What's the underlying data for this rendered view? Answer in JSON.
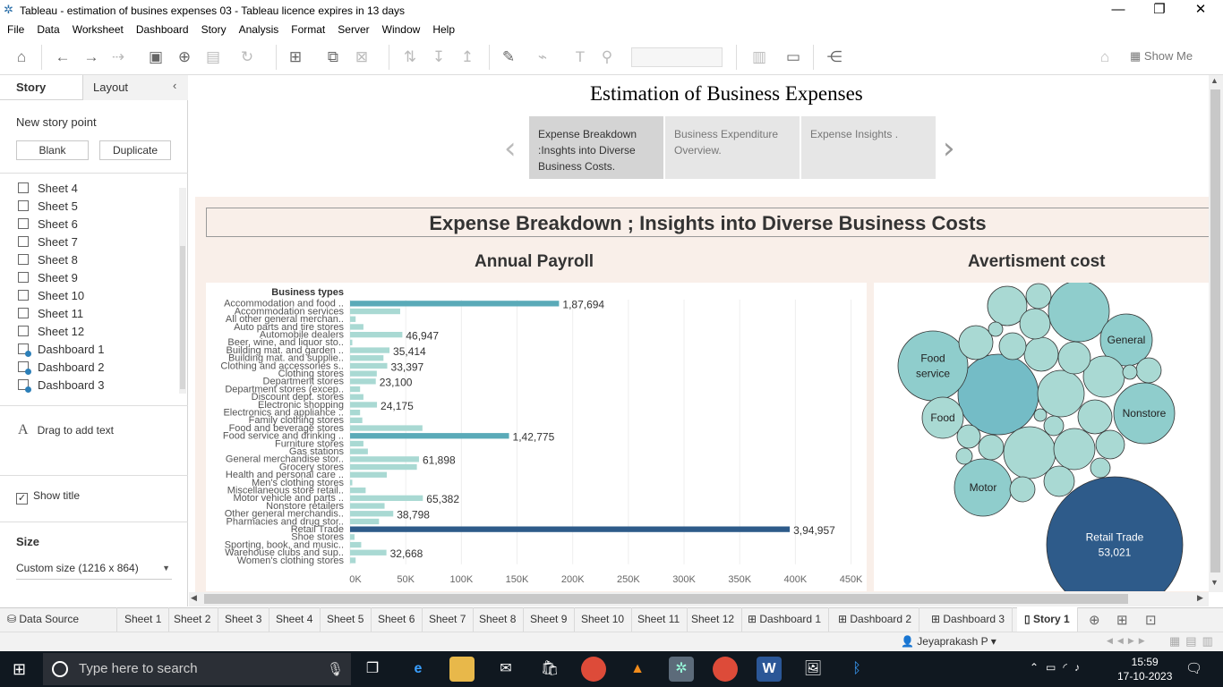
{
  "window": {
    "title": "Tableau - estimation of busines expenses 03 - Tableau licence expires in 13 days",
    "minimize": "—",
    "maximize": "❐",
    "close": "✕"
  },
  "menu": [
    "File",
    "Data",
    "Worksheet",
    "Dashboard",
    "Story",
    "Analysis",
    "Format",
    "Server",
    "Window",
    "Help"
  ],
  "toolbar": {
    "show_me": "Show Me"
  },
  "left_panel": {
    "tab_story": "Story",
    "tab_layout": "Layout",
    "new_story_point": "New story point",
    "blank_button": "Blank",
    "duplicate_button": "Duplicate",
    "items": [
      {
        "label": "Sheet 4",
        "type": "sheet"
      },
      {
        "label": "Sheet 5",
        "type": "sheet"
      },
      {
        "label": "Sheet 6",
        "type": "sheet"
      },
      {
        "label": "Sheet 7",
        "type": "sheet"
      },
      {
        "label": "Sheet 8",
        "type": "sheet"
      },
      {
        "label": "Sheet 9",
        "type": "sheet"
      },
      {
        "label": "Sheet 10",
        "type": "sheet"
      },
      {
        "label": "Sheet 11",
        "type": "sheet"
      },
      {
        "label": "Sheet 12",
        "type": "sheet"
      },
      {
        "label": "Dashboard 1",
        "type": "dashboard"
      },
      {
        "label": "Dashboard 2",
        "type": "dashboard"
      },
      {
        "label": "Dashboard 3",
        "type": "dashboard"
      }
    ],
    "drag_text": "Drag to add text",
    "show_title": "Show title",
    "size_label": "Size",
    "size_value": "Custom size (1216 x 864)"
  },
  "story": {
    "title": "Estimation of Business Expenses",
    "points": [
      "Expense Breakdown :Insghts into Diverse Business Costs.",
      "Business Expenditure Overview.",
      "Expense Insights ."
    ],
    "active_point": 0
  },
  "dashboard": {
    "title": "Expense Breakdown ; Insights into Diverse Business Costs",
    "payroll_title": "Annual Payroll",
    "advert_title": "Avertisment cost"
  },
  "chart_data": [
    {
      "type": "bar",
      "orientation": "horizontal",
      "title": "Annual Payroll",
      "ylabel": "Business types",
      "categories": [
        "Accommodation and food ..",
        "Accommodation services",
        "All other general merchan..",
        "Auto parts and tire stores",
        "Automobile dealers",
        "Beer, wine, and liquor sto..",
        "Building mat. and garden ..",
        "Building mat. and supplie..",
        "Clothing and accessories s..",
        "Clothing stores",
        "Department stores",
        "Department stores (excep..",
        "Discount dept. stores",
        "Electronic shopping",
        "Electronics and appliance ..",
        "Family clothing stores",
        "Food and beverage stores",
        "Food service and drinking ..",
        "Furniture stores",
        "Gas stations",
        "General merchandise stor..",
        "Grocery stores",
        "Health and personal care ..",
        "Men's clothing stores",
        "Miscellaneous store retail..",
        "Motor vehicle and parts ..",
        "Nonstore retailers",
        "Other general merchandis..",
        "Pharmacies and drug stor..",
        "Retail Trade",
        "Shoe stores",
        "Sporting, book, and music..",
        "Warehouse clubs and sup..",
        "Women's clothing stores"
      ],
      "values": [
        187694,
        45000,
        5000,
        12000,
        46947,
        2000,
        35414,
        30000,
        33397,
        24000,
        23100,
        9000,
        12000,
        24175,
        9000,
        11000,
        65000,
        142775,
        12000,
        16000,
        61898,
        60000,
        33000,
        2000,
        14000,
        65382,
        31000,
        38798,
        26000,
        394957,
        4000,
        10000,
        32668,
        5000
      ],
      "value_labels": {
        "0": "1,87,694",
        "4": "46,947",
        "6": "35,414",
        "8": "33,397",
        "10": "23,100",
        "13": "24,175",
        "17": "1,42,775",
        "20": "61,898",
        "25": "65,382",
        "27": "38,798",
        "29": "3,94,957",
        "32": "32,668"
      },
      "xlim": [
        0,
        460000
      ],
      "xticks": [
        0,
        50000,
        100000,
        150000,
        200000,
        250000,
        300000,
        350000,
        400000,
        450000
      ],
      "xtick_labels": [
        "0K",
        "50K",
        "100K",
        "150K",
        "200K",
        "250K",
        "300K",
        "350K",
        "400K",
        "450K"
      ],
      "highlight_colors": {
        "max": "#2e5b8a",
        "high": "#5aaab8",
        "default": "#a9d9d3"
      }
    },
    {
      "type": "bubble",
      "title": "Avertisment cost",
      "labeled_bubbles": [
        {
          "label": "Retail Trade",
          "value": "53,021"
        },
        {
          "label": "Food service"
        },
        {
          "label": "General"
        },
        {
          "label": "Nonstore"
        },
        {
          "label": "Food"
        },
        {
          "label": "Motor"
        }
      ],
      "colors": {
        "largest": "#2e5b8a",
        "large": "#74bcc6",
        "medium": "#8fcdcc",
        "small": "#a9d9d3"
      }
    }
  ],
  "sheet_tabs": [
    "Data Source",
    "Sheet 1",
    "Sheet 2",
    "Sheet 3",
    "Sheet 4",
    "Sheet 5",
    "Sheet 6",
    "Sheet 7",
    "Sheet 8",
    "Sheet 9",
    "Sheet 10",
    "Sheet 11",
    "Sheet 12",
    "Dashboard 1",
    "Dashboard 2",
    "Dashboard 3",
    "Story 1"
  ],
  "status": {
    "user": "Jeyaprakash P"
  },
  "taskbar": {
    "search_placeholder": "Type here to search",
    "time": "15:59",
    "date": "17-10-2023"
  }
}
